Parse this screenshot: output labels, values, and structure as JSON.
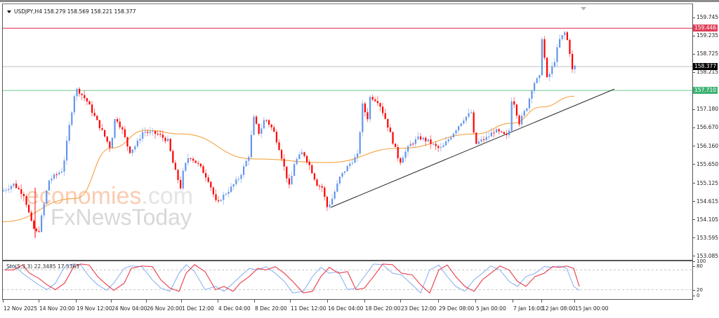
{
  "header": {
    "symbol": "USDJPY,H4",
    "ohlc": "158.279 158.569 158.221 158.377",
    "title": "USDJPY,H4  158.279 158.569 158.221 158.377"
  },
  "colors": {
    "bull": "#6495ED",
    "bear": "#FF0000",
    "resistance": "#E0405A",
    "support": "#3CB371",
    "current_price": "#000000",
    "ma": "#F4A340",
    "trendline": "#222222",
    "stoch_main": "#8FB3F0",
    "stoch_signal": "#E83A4A"
  },
  "price_axis": {
    "ticks": [
      "159.745",
      "159.235",
      "158.725",
      "158.215",
      "157.180",
      "156.670",
      "156.160",
      "155.650",
      "155.125",
      "154.615",
      "154.105",
      "153.595",
      "153.085"
    ],
    "labels": {
      "resistance": "159.446",
      "current": "158.377",
      "support": "157.710"
    }
  },
  "stoch_axis": {
    "ticks": [
      "100",
      "80",
      "20",
      "0"
    ]
  },
  "indicator": {
    "label": "Sto(5,3,3) 22.3485 17.5363"
  },
  "time_axis": {
    "labels": [
      "12 Nov 2025",
      "14 Nov 20:00",
      "19 Nov 12:00",
      "24 Nov 04:00",
      "26 Nov 20:00",
      "1 Dec 12:00",
      "4 Dec 04:00",
      "8 Dec 20:00",
      "11 Dec 12:00",
      "16 Dec 04:00",
      "18 Dec 20:00",
      "23 Dec 12:00",
      "29 Dec 08:00",
      "5 Jan 00:00",
      "7 Jan 16:00",
      "12 Jan 08:00",
      "15 Jan 00:00"
    ]
  },
  "watermark": {
    "line1_main": "economies",
    "line1_suffix": ".com",
    "line2": "FxNewsToday"
  },
  "chart_data": {
    "type": "candlestick",
    "title": "USDJPY,H4",
    "symbol": "USDJPY",
    "timeframe": "H4",
    "last_bar": {
      "open": 158.279,
      "high": 158.569,
      "low": 158.221,
      "close": 158.377
    },
    "ylim": [
      153.085,
      159.745
    ],
    "horizontal_lines": [
      {
        "name": "resistance",
        "price": 159.446,
        "color": "#E0405A"
      },
      {
        "name": "current",
        "price": 158.377,
        "color": "#C0C0C0"
      },
      {
        "name": "support",
        "price": 157.71,
        "color": "#3CB371"
      }
    ],
    "trendline": {
      "from": {
        "time": "16 Dec 04:00",
        "price": 154.45
      },
      "to": {
        "time": "15 Jan 00:00",
        "price": 157.5
      }
    },
    "moving_average": {
      "color": "#F4A340",
      "approx_path": [
        {
          "time": "12 Nov 2025",
          "price": 154.05
        },
        {
          "time": "19 Nov 12:00",
          "price": 154.7
        },
        {
          "time": "24 Nov 04:00",
          "price": 156.1
        },
        {
          "time": "26 Nov 20:00",
          "price": 156.6
        },
        {
          "time": "1 Dec 12:00",
          "price": 156.5
        },
        {
          "time": "8 Dec 20:00",
          "price": 155.8
        },
        {
          "time": "16 Dec 04:00",
          "price": 155.7
        },
        {
          "time": "23 Dec 12:00",
          "price": 156.1
        },
        {
          "time": "5 Jan 00:00",
          "price": 156.5
        },
        {
          "time": "7 Jan 16:00",
          "price": 156.8
        },
        {
          "time": "12 Jan 08:00",
          "price": 157.25
        },
        {
          "time": "15 Jan 00:00",
          "price": 157.55
        }
      ]
    },
    "key_prices": [
      {
        "time": "12 Nov 2025",
        "price": 154.9
      },
      {
        "time": "14 Nov 20:00",
        "price": 153.7,
        "note": "spike low"
      },
      {
        "time": "19 Nov 12:00",
        "price": 157.75,
        "note": "swing high"
      },
      {
        "time": "24 Nov 04:00",
        "price": 156.1
      },
      {
        "time": "26 Nov 20:00",
        "price": 156.55
      },
      {
        "time": "1 Dec 12:00",
        "price": 155.0
      },
      {
        "time": "4 Dec 04:00",
        "price": 154.5
      },
      {
        "time": "8 Dec 20:00",
        "price": 156.95
      },
      {
        "time": "11 Dec 12:00",
        "price": 155.0
      },
      {
        "time": "16 Dec 04:00",
        "price": 154.45,
        "note": "swing low"
      },
      {
        "time": "18 Dec 20:00",
        "price": 157.7,
        "note": "swing high"
      },
      {
        "time": "23 Dec 12:00",
        "price": 155.7
      },
      {
        "time": "29 Dec 08:00",
        "price": 156.1
      },
      {
        "time": "5 Jan 00:00",
        "price": 156.2
      },
      {
        "time": "7 Jan 16:00",
        "price": 157.6
      },
      {
        "time": "12 Jan 08:00",
        "price": 159.45,
        "note": "swing high"
      },
      {
        "time": "15 Jan 00:00",
        "price": 158.38
      }
    ],
    "stochastic": {
      "params": "5,3,3",
      "main": 22.3485,
      "signal": 17.5363,
      "levels": [
        20,
        80
      ],
      "range": [
        0,
        100
      ]
    },
    "xlabel": "",
    "ylabel": ""
  }
}
